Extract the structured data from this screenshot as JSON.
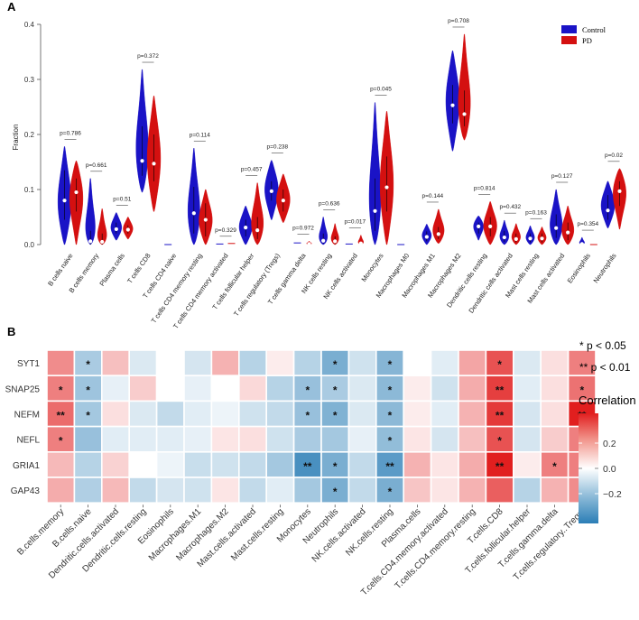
{
  "panel_a": {
    "label": "A",
    "ylabel": "Fraction",
    "ylim": [
      0,
      0.4
    ],
    "y_ticks": [
      "0.0",
      "0.1",
      "0.2",
      "0.3",
      "0.4"
    ],
    "legend": [
      {
        "name": "Control",
        "color": "#1a13c6"
      },
      {
        "name": "PD",
        "color": "#d41010"
      }
    ]
  },
  "panel_b": {
    "label": "B",
    "sig_notes": [
      "* p < 0.05",
      "** p < 0.01"
    ],
    "colorbar": {
      "title": "Correlation",
      "ticks": [
        "0.2",
        "0.0",
        "−0.2"
      ]
    }
  },
  "chart_data": [
    {
      "type": "violin",
      "title": "",
      "xlabel": "",
      "ylabel": "Fraction",
      "ylim": [
        0,
        0.4
      ],
      "series_names": [
        "Control",
        "PD"
      ],
      "categories": [
        {
          "name": "B cells naive",
          "p": "p=0.786",
          "control": {
            "min": 0.0,
            "max": 0.178,
            "median": 0.08,
            "q1": 0.045,
            "q3": 0.135,
            "peak": 0.07
          },
          "pd": {
            "min": 0.0,
            "max": 0.152,
            "median": 0.095,
            "q1": 0.06,
            "q3": 0.12,
            "peak": 0.09
          }
        },
        {
          "name": "B cells memory",
          "p": "p=0.661",
          "control": {
            "min": 0.0,
            "max": 0.12,
            "median": 0.006,
            "q1": 0.0,
            "q3": 0.025,
            "peak": 0.005
          },
          "pd": {
            "min": 0.0,
            "max": 0.065,
            "median": 0.005,
            "q1": 0.0,
            "q3": 0.02,
            "peak": 0.004
          }
        },
        {
          "name": "Plasma cells",
          "p": "p=0.51",
          "control": {
            "min": 0.008,
            "max": 0.058,
            "median": 0.028,
            "q1": 0.02,
            "q3": 0.04,
            "peak": 0.03
          },
          "pd": {
            "min": 0.01,
            "max": 0.05,
            "median": 0.027,
            "q1": 0.02,
            "q3": 0.035,
            "peak": 0.028
          }
        },
        {
          "name": "T cells CD8",
          "p": "p=0.372",
          "control": {
            "min": 0.095,
            "max": 0.318,
            "median": 0.152,
            "q1": 0.125,
            "q3": 0.215,
            "peak": 0.15
          },
          "pd": {
            "min": 0.06,
            "max": 0.27,
            "median": 0.147,
            "q1": 0.115,
            "q3": 0.2,
            "peak": 0.15
          }
        },
        {
          "name": "T cells CD4 naive",
          "p": "",
          "control": {
            "min": 0.0,
            "max": 0.0,
            "median": 0.0,
            "q1": 0.0,
            "q3": 0.0,
            "peak": 0.0
          },
          "pd": null
        },
        {
          "name": "T cells CD4 memory resting",
          "p": "p=0.114",
          "control": {
            "min": 0.0,
            "max": 0.175,
            "median": 0.057,
            "q1": 0.02,
            "q3": 0.105,
            "peak": 0.04
          },
          "pd": {
            "min": 0.0,
            "max": 0.1,
            "median": 0.045,
            "q1": 0.015,
            "q3": 0.075,
            "peak": 0.04
          }
        },
        {
          "name": "T cells CD4 memory activated",
          "p": "p=0.329",
          "control": {
            "min": 0.0,
            "max": 0.001,
            "median": 0.0,
            "q1": 0.0,
            "q3": 0.0,
            "peak": 0.0
          },
          "pd": {
            "min": 0.0,
            "max": 0.002,
            "median": 0.0,
            "q1": 0.0,
            "q3": 0.0,
            "peak": 0.0
          }
        },
        {
          "name": "T cells follicular helper",
          "p": "p=0.457",
          "control": {
            "min": 0.0,
            "max": 0.07,
            "median": 0.031,
            "q1": 0.015,
            "q3": 0.045,
            "peak": 0.03
          },
          "pd": {
            "min": 0.0,
            "max": 0.112,
            "median": 0.026,
            "q1": 0.01,
            "q3": 0.05,
            "peak": 0.025
          }
        },
        {
          "name": "T cells regulatory (Tregs)",
          "p": "p=0.238",
          "control": {
            "min": 0.045,
            "max": 0.153,
            "median": 0.097,
            "q1": 0.08,
            "q3": 0.115,
            "peak": 0.1
          },
          "pd": {
            "min": 0.04,
            "max": 0.128,
            "median": 0.08,
            "q1": 0.06,
            "q3": 0.1,
            "peak": 0.08
          }
        },
        {
          "name": "T cells gamma delta",
          "p": "p=0.972",
          "control": {
            "min": 0.0,
            "max": 0.003,
            "median": 0.0,
            "q1": 0.0,
            "q3": 0.0,
            "peak": 0.0
          },
          "pd": {
            "min": 0.0,
            "max": 0.006,
            "median": 0.001,
            "q1": 0.0,
            "q3": 0.002,
            "peak": 0.001
          }
        },
        {
          "name": "NK cells resting",
          "p": "p=0.636",
          "control": {
            "min": 0.0,
            "max": 0.05,
            "median": 0.007,
            "q1": 0.002,
            "q3": 0.02,
            "peak": 0.005
          },
          "pd": {
            "min": 0.0,
            "max": 0.038,
            "median": 0.006,
            "q1": 0.001,
            "q3": 0.015,
            "peak": 0.005
          }
        },
        {
          "name": "NK cells activated",
          "p": "p=0.017",
          "control": {
            "min": 0.0,
            "max": 0.001,
            "median": 0.0,
            "q1": 0.0,
            "q3": 0.0,
            "peak": 0.0
          },
          "pd": {
            "min": 0.0,
            "max": 0.017,
            "median": 0.002,
            "q1": 0.0,
            "q3": 0.005,
            "peak": 0.001
          }
        },
        {
          "name": "Monocytes",
          "p": "p=0.045",
          "control": {
            "min": 0.0,
            "max": 0.258,
            "median": 0.061,
            "q1": 0.025,
            "q3": 0.12,
            "peak": 0.05
          },
          "pd": {
            "min": 0.0,
            "max": 0.242,
            "median": 0.104,
            "q1": 0.06,
            "q3": 0.16,
            "peak": 0.1
          }
        },
        {
          "name": "Macrophages M0",
          "p": "",
          "control": {
            "min": 0.0,
            "max": 0.0,
            "median": 0.0,
            "q1": 0.0,
            "q3": 0.0,
            "peak": 0.0
          },
          "pd": null
        },
        {
          "name": "Macrophages M1",
          "p": "p=0.144",
          "control": {
            "min": 0.0,
            "max": 0.037,
            "median": 0.014,
            "q1": 0.006,
            "q3": 0.024,
            "peak": 0.015
          },
          "pd": {
            "min": 0.002,
            "max": 0.064,
            "median": 0.019,
            "q1": 0.01,
            "q3": 0.032,
            "peak": 0.02
          }
        },
        {
          "name": "Macrophages M2",
          "p": "p=0.708",
          "control": {
            "min": 0.17,
            "max": 0.352,
            "median": 0.253,
            "q1": 0.22,
            "q3": 0.29,
            "peak": 0.26
          },
          "pd": {
            "min": 0.19,
            "max": 0.382,
            "median": 0.237,
            "q1": 0.215,
            "q3": 0.28,
            "peak": 0.235
          }
        },
        {
          "name": "Dendritic cells resting",
          "p": "p=0.814",
          "control": {
            "min": 0.008,
            "max": 0.052,
            "median": 0.033,
            "q1": 0.02,
            "q3": 0.04,
            "peak": 0.035
          },
          "pd": {
            "min": 0.0,
            "max": 0.078,
            "median": 0.033,
            "q1": 0.015,
            "q3": 0.05,
            "peak": 0.03
          }
        },
        {
          "name": "Dendritic cells activated",
          "p": "p=0.432",
          "control": {
            "min": 0.0,
            "max": 0.044,
            "median": 0.013,
            "q1": 0.005,
            "q3": 0.025,
            "peak": 0.01
          },
          "pd": {
            "min": 0.0,
            "max": 0.038,
            "median": 0.01,
            "q1": 0.004,
            "q3": 0.02,
            "peak": 0.01
          }
        },
        {
          "name": "Mast cells resting",
          "p": "p=0.163",
          "control": {
            "min": 0.0,
            "max": 0.034,
            "median": 0.011,
            "q1": 0.004,
            "q3": 0.02,
            "peak": 0.01
          },
          "pd": {
            "min": 0.0,
            "max": 0.032,
            "median": 0.011,
            "q1": 0.004,
            "q3": 0.02,
            "peak": 0.01
          }
        },
        {
          "name": "Mast cells activated",
          "p": "p=0.127",
          "control": {
            "min": 0.0,
            "max": 0.1,
            "median": 0.03,
            "q1": 0.012,
            "q3": 0.055,
            "peak": 0.025
          },
          "pd": {
            "min": 0.0,
            "max": 0.07,
            "median": 0.022,
            "q1": 0.008,
            "q3": 0.04,
            "peak": 0.02
          }
        },
        {
          "name": "Eosinophils",
          "p": "p=0.354",
          "control": {
            "min": 0.0,
            "max": 0.013,
            "median": 0.001,
            "q1": 0.0,
            "q3": 0.004,
            "peak": 0.001
          },
          "pd": {
            "min": 0.0,
            "max": 0.0,
            "median": 0.0,
            "q1": 0.0,
            "q3": 0.0,
            "peak": 0.0
          }
        },
        {
          "name": "Neutrophils",
          "p": "p=0.02",
          "control": {
            "min": 0.03,
            "max": 0.115,
            "median": 0.062,
            "q1": 0.045,
            "q3": 0.09,
            "peak": 0.07
          },
          "pd": {
            "min": 0.028,
            "max": 0.138,
            "median": 0.097,
            "q1": 0.07,
            "q3": 0.115,
            "peak": 0.1
          }
        }
      ]
    },
    {
      "type": "heatmap",
      "title": "",
      "rows": [
        "SYT1",
        "SNAP25",
        "NEFM",
        "NEFL",
        "GRIA1",
        "GAP43"
      ],
      "columns": [
        "B.cells.memory",
        "B.cells.naive",
        "Dendritic.cells.activated",
        "Dendritic.cells.resting",
        "Eosinophils",
        "Macrophages.M1",
        "Macrophages.M2",
        "Mast.cells.activated",
        "Mast.cells.resting",
        "Monocytes",
        "Neutrophils",
        "NK.cells.activated",
        "NK.cells.resting",
        "Plasma.cells",
        "T.cells.CD4.memory.activated",
        "T.cells.CD4.memory.resting",
        "T.cells.CD8",
        "T.cells.follicular.helper",
        "T.cells.gamma.delta",
        "T.cells.regulatory..Tregs."
      ],
      "values": [
        [
          0.18,
          -0.14,
          0.1,
          -0.06,
          0.0,
          -0.07,
          0.12,
          -0.12,
          0.03,
          -0.12,
          -0.22,
          -0.08,
          -0.2,
          0.0,
          -0.05,
          0.14,
          0.27,
          -0.06,
          0.05,
          0.2
        ],
        [
          0.2,
          -0.16,
          -0.04,
          0.08,
          0.0,
          -0.04,
          0.0,
          0.06,
          -0.12,
          -0.17,
          -0.14,
          -0.06,
          -0.19,
          0.03,
          -0.08,
          0.13,
          0.3,
          -0.05,
          0.05,
          0.22
        ],
        [
          0.23,
          -0.15,
          0.05,
          -0.06,
          -0.1,
          -0.05,
          -0.03,
          -0.08,
          -0.1,
          -0.17,
          -0.21,
          -0.06,
          -0.19,
          0.03,
          -0.05,
          0.12,
          0.31,
          -0.07,
          0.05,
          0.35
        ],
        [
          0.2,
          -0.17,
          -0.05,
          -0.05,
          -0.05,
          -0.04,
          0.04,
          0.05,
          -0.08,
          -0.14,
          -0.15,
          -0.04,
          -0.18,
          0.04,
          -0.07,
          0.1,
          0.27,
          -0.07,
          0.08,
          0.2
        ],
        [
          0.11,
          -0.12,
          0.07,
          0.0,
          -0.03,
          -0.09,
          -0.08,
          -0.1,
          -0.15,
          -0.3,
          -0.22,
          -0.1,
          -0.27,
          0.12,
          0.04,
          0.13,
          0.38,
          0.03,
          0.2,
          0.2
        ],
        [
          0.13,
          -0.13,
          0.11,
          -0.1,
          -0.07,
          -0.08,
          0.04,
          -0.1,
          -0.05,
          -0.15,
          -0.22,
          -0.1,
          -0.22,
          0.09,
          0.04,
          0.12,
          0.25,
          -0.12,
          0.12,
          0.18
        ]
      ],
      "stars": [
        [
          "",
          "*",
          "",
          "",
          "",
          "",
          "",
          "",
          "",
          "",
          "*",
          "",
          "*",
          "",
          "",
          "",
          "*",
          "",
          "",
          ""
        ],
        [
          "*",
          "*",
          "",
          "",
          "",
          "",
          "",
          "",
          "",
          "*",
          "*",
          "",
          "*",
          "",
          "",
          "",
          "**",
          "",
          "",
          "*"
        ],
        [
          "**",
          "*",
          "",
          "",
          "",
          "",
          "",
          "",
          "",
          "*",
          "*",
          "",
          "*",
          "",
          "",
          "",
          "**",
          "",
          "",
          "**"
        ],
        [
          "*",
          "",
          "",
          "",
          "",
          "",
          "",
          "",
          "",
          "",
          "",
          "",
          "*",
          "",
          "",
          "",
          "*",
          "",
          "",
          "*"
        ],
        [
          "",
          "",
          "",
          "",
          "",
          "",
          "",
          "",
          "",
          "**",
          "*",
          "",
          "**",
          "",
          "",
          "",
          "**",
          "",
          "*",
          "*"
        ],
        [
          "",
          "",
          "",
          "",
          "",
          "",
          "",
          "",
          "",
          "",
          "*",
          "",
          "*",
          "",
          "",
          "",
          "",
          "",
          "",
          ""
        ]
      ],
      "color_range": [
        -0.35,
        0.35
      ],
      "legend": {
        "title": "Correlation",
        "ticks": [
          0.2,
          0.0,
          -0.2
        ]
      }
    }
  ]
}
